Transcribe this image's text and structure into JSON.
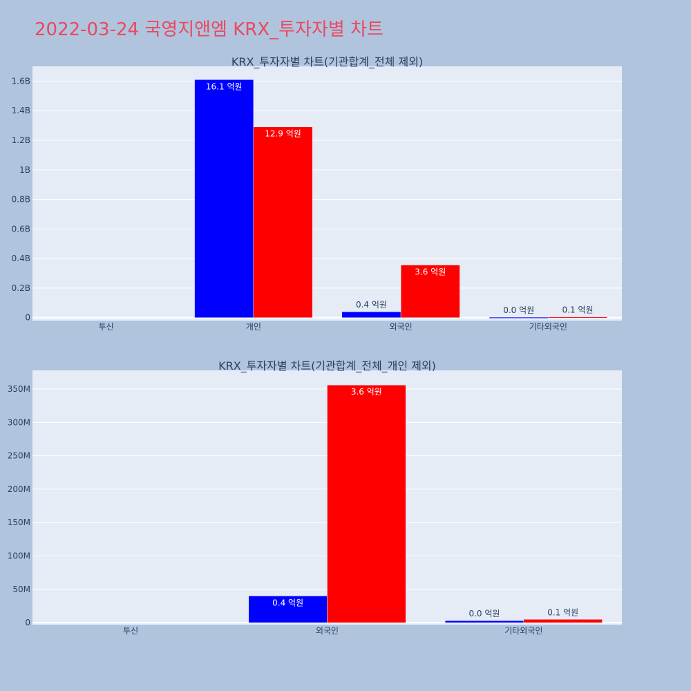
{
  "page": {
    "title": "2022-03-24 국영지앤엠 KRX_투자자별 차트",
    "title_color": "#e8495f",
    "background": "#b0c4de",
    "plot_background": "#e5ecf6"
  },
  "chart_data": [
    {
      "type": "bar",
      "title": "KRX_투자자별 차트(기관합계_전체 제외)",
      "categories": [
        "투신",
        "개인",
        "외국인",
        "기타외국인"
      ],
      "series": [
        {
          "color": "#0000ff",
          "values": [
            0,
            1610000000,
            40000000,
            3000000
          ],
          "labels": [
            "",
            "16.1 억원",
            "0.4 억원",
            "0.0 억원"
          ]
        },
        {
          "color": "#ff0000",
          "values": [
            0,
            1290000000,
            356000000,
            5000000
          ],
          "labels": [
            "",
            "12.9 억원",
            "3.6 억원",
            "0.1 억원"
          ]
        }
      ],
      "ylim": [
        -20000000,
        1700000000
      ],
      "yticks": [
        0,
        200000000,
        400000000,
        600000000,
        800000000,
        1000000000,
        1200000000,
        1400000000,
        1600000000
      ],
      "ytick_labels": [
        "0",
        "0.2B",
        "0.4B",
        "0.6B",
        "0.8B",
        "1B",
        "1.2B",
        "1.4B",
        "1.6B"
      ],
      "grid": true
    },
    {
      "type": "bar",
      "title": "KRX_투자자별 차트(기관합계_전체_개인 제외)",
      "categories": [
        "투신",
        "외국인",
        "기타외국인"
      ],
      "series": [
        {
          "color": "#0000ff",
          "values": [
            0,
            40000000,
            3000000
          ],
          "labels": [
            "",
            "0.4 억원",
            "0.0 억원"
          ]
        },
        {
          "color": "#ff0000",
          "values": [
            0,
            356000000,
            5000000
          ],
          "labels": [
            "",
            "3.6 억원",
            "0.1 억원"
          ]
        }
      ],
      "ylim": [
        -3000000,
        378000000
      ],
      "yticks": [
        0,
        50000000,
        100000000,
        150000000,
        200000000,
        250000000,
        300000000,
        350000000
      ],
      "ytick_labels": [
        "0",
        "50M",
        "100M",
        "150M",
        "200M",
        "250M",
        "300M",
        "350M"
      ],
      "grid": true
    }
  ]
}
